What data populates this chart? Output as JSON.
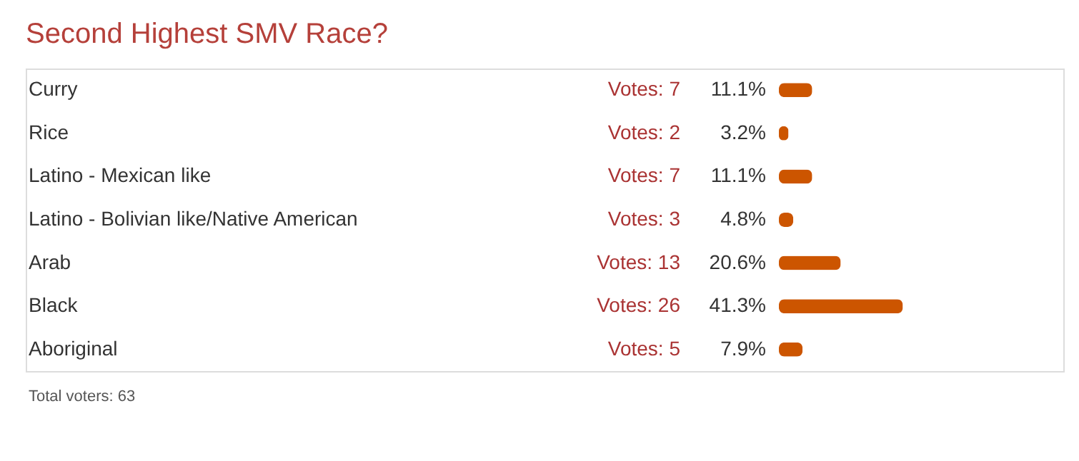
{
  "chart_data": {
    "type": "bar",
    "orientation": "horizontal",
    "title": "Second Highest SMV Race?",
    "categories": [
      "Curry",
      "Rice",
      "Latino - Mexican like",
      "Latino - Bolivian like/Native American",
      "Arab",
      "Black",
      "Aboriginal"
    ],
    "values": [
      11.1,
      3.2,
      11.1,
      4.8,
      20.6,
      41.3,
      7.9
    ],
    "value_labels": [
      "11.1%",
      "3.2%",
      "11.1%",
      "4.8%",
      "20.6%",
      "41.3%",
      "7.9%"
    ],
    "color": "#cc5500",
    "annotations": [
      "Votes: 7",
      "Votes: 2",
      "Votes: 7",
      "Votes: 3",
      "Votes: 13",
      "Votes: 26",
      "Votes: 5",
      "Total voters: 63"
    ]
  }
}
